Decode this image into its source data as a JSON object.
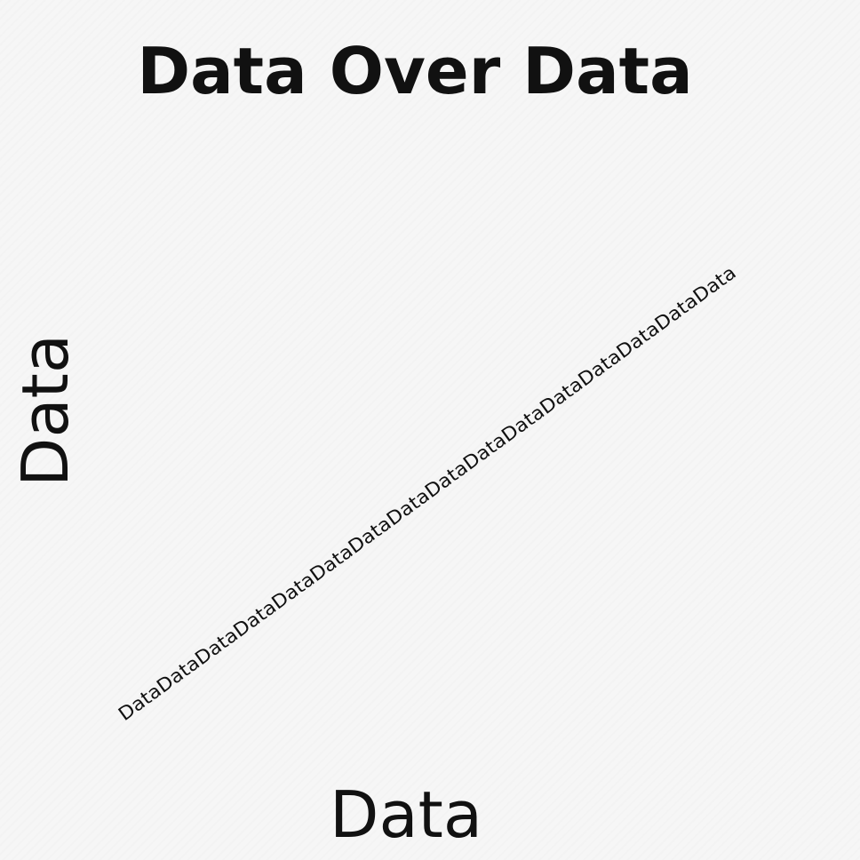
{
  "chart_data": {
    "type": "line",
    "title": "Data Over Data",
    "xlabel": "Data",
    "ylabel": "Data",
    "grid": false,
    "series": [
      {
        "label": "DataDataDataDataDataDataDataDataDataDataDataDataDataDataDataData",
        "values": [
          0,
          1
        ]
      }
    ]
  }
}
